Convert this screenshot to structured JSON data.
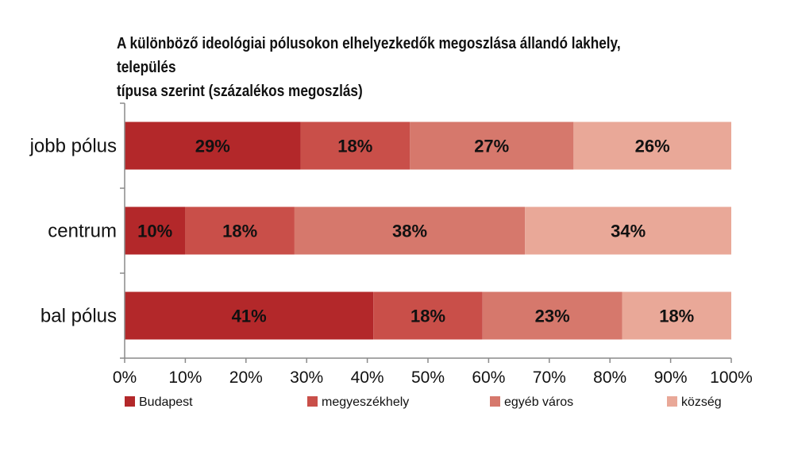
{
  "chart_data": {
    "type": "bar",
    "orientation": "horizontal",
    "stacked": true,
    "title": {
      "line1": "A különböző ideológiai pólusokon elhelyezkedők megoszlása állandó lakhely, település",
      "line2": "típusa szerint (százalékos megoszlás)"
    },
    "categories": [
      "jobb pólus",
      "centrum",
      "bal pólus"
    ],
    "series": [
      {
        "name": "Budapest",
        "color": "#b3282a",
        "values": [
          29,
          10,
          41
        ],
        "labels": [
          "29%",
          "10%",
          "41%"
        ]
      },
      {
        "name": "megyeszékhely",
        "color": "#c94f49",
        "values": [
          18,
          18,
          18
        ],
        "labels": [
          "18%",
          "18%",
          "18%"
        ]
      },
      {
        "name": "egyéb város",
        "color": "#d6786c",
        "values": [
          27,
          38,
          23
        ],
        "labels": [
          "27%",
          "38%",
          "23%"
        ]
      },
      {
        "name": "község",
        "color": "#e9a898",
        "values": [
          26,
          34,
          18
        ],
        "labels": [
          "26%",
          "34%",
          "18%"
        ]
      }
    ],
    "xlim": [
      0,
      100
    ],
    "xticks": [
      "0%",
      "10%",
      "20%",
      "30%",
      "40%",
      "50%",
      "60%",
      "70%",
      "80%",
      "90%",
      "100%"
    ],
    "legend_position": "bottom",
    "grid": false
  }
}
